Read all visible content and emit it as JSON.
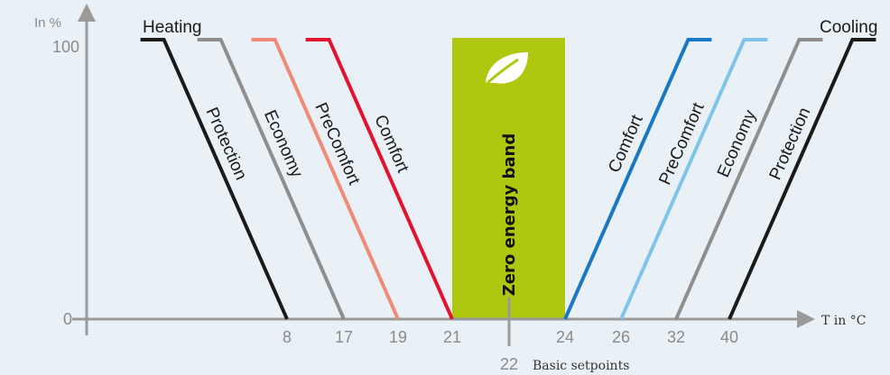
{
  "chart_data": {
    "type": "line",
    "ylabel": "In %",
    "xlabel": "T in °C",
    "y_ticks": [
      "0",
      "100"
    ],
    "x_ticks": [
      "8",
      "17",
      "19",
      "21",
      "24",
      "26",
      "32",
      "40"
    ],
    "basic_setpoint_value": "22",
    "basic_setpoint_label": "Basic setpoints",
    "heating_label": "Heating",
    "cooling_label": "Cooling",
    "band_label": "Zero energy band",
    "band": {
      "x": [
        21,
        24
      ],
      "color": "#afc80f"
    },
    "ylim": [
      0,
      100
    ],
    "series": [
      {
        "name": "Protection",
        "side": "heating",
        "color": "#1a1a1a",
        "zero_at": 8
      },
      {
        "name": "Economy",
        "side": "heating",
        "color": "#8e8e8e",
        "zero_at": 17
      },
      {
        "name": "PreComfort",
        "side": "heating",
        "color": "#f08a78",
        "zero_at": 19
      },
      {
        "name": "Comfort",
        "side": "heating",
        "color": "#e2132e",
        "zero_at": 21
      },
      {
        "name": "Comfort",
        "side": "cooling",
        "color": "#1a78c2",
        "zero_at": 24
      },
      {
        "name": "PreComfort",
        "side": "cooling",
        "color": "#7fc4ea",
        "zero_at": 26
      },
      {
        "name": "Economy",
        "side": "cooling",
        "color": "#8e8e8e",
        "zero_at": 32
      },
      {
        "name": "Protection",
        "side": "cooling",
        "color": "#1a1a1a",
        "zero_at": 40
      }
    ],
    "axis_color": "#9a9a9a"
  }
}
